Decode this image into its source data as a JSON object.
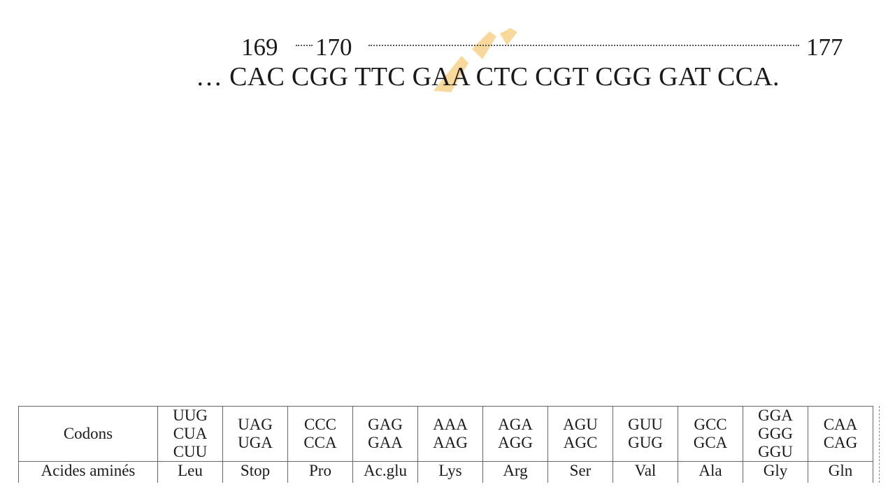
{
  "sequence": {
    "positions": [
      "169",
      "170",
      "177"
    ],
    "text": "… CAC CGG TTC GAA CTC CGT CGG GAT CCA."
  },
  "table": {
    "row_headers": [
      "Codons",
      "Acides aminés"
    ],
    "columns": [
      {
        "codons": [
          "UUG",
          "CUA",
          "CUU"
        ],
        "amino_acid": "Leu"
      },
      {
        "codons": [
          "UAG",
          "UGA"
        ],
        "amino_acid": "Stop"
      },
      {
        "codons": [
          "CCC",
          "CCA"
        ],
        "amino_acid": "Pro"
      },
      {
        "codons": [
          "GAG",
          "GAA"
        ],
        "amino_acid": "Ac.glu"
      },
      {
        "codons": [
          "AAA",
          "AAG"
        ],
        "amino_acid": "Lys"
      },
      {
        "codons": [
          "AGA",
          "AGG"
        ],
        "amino_acid": "Arg"
      },
      {
        "codons": [
          "AGU",
          "AGC"
        ],
        "amino_acid": "Ser"
      },
      {
        "codons": [
          "GUU",
          "GUG"
        ],
        "amino_acid": "Val"
      },
      {
        "codons": [
          "GCC",
          "GCA"
        ],
        "amino_acid": "Ala"
      },
      {
        "codons": [
          "GGA",
          "GGG",
          "GGU"
        ],
        "amino_acid": "Gly"
      },
      {
        "codons": [
          "CAA",
          "CAG"
        ],
        "amino_acid": "Gln"
      }
    ]
  },
  "colors": {
    "watermark": "#f5b94a",
    "text": "#1a1a1a"
  }
}
